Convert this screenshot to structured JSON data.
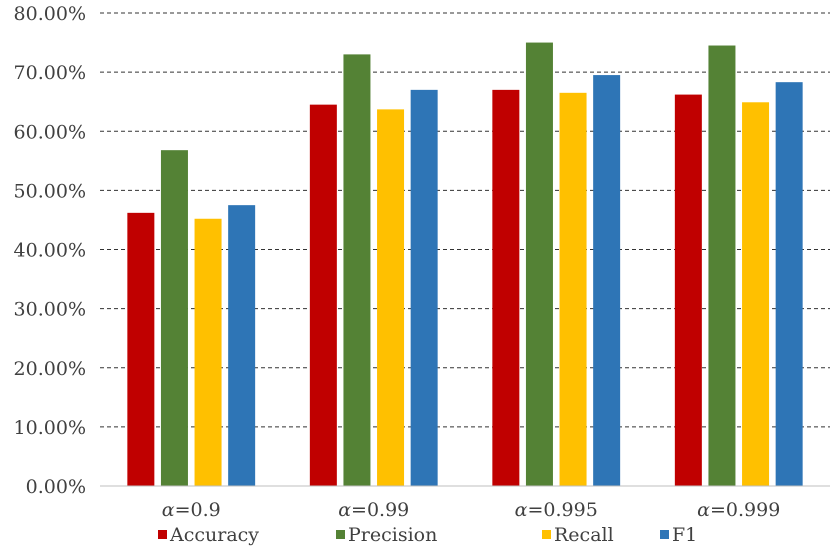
{
  "chart_data": {
    "type": "bar",
    "categories": [
      {
        "symbol": "α",
        "rest": "=0.9"
      },
      {
        "symbol": "α",
        "rest": "=0.99"
      },
      {
        "symbol": "α",
        "rest": "=0.995"
      },
      {
        "symbol": "α",
        "rest": "=0.999"
      }
    ],
    "series": [
      {
        "name": "Accuracy",
        "color": "#c00000",
        "values": [
          46.2,
          64.5,
          67.0,
          66.2
        ]
      },
      {
        "name": "Precision",
        "color": "#548235",
        "values": [
          56.8,
          73.0,
          75.0,
          74.5
        ]
      },
      {
        "name": "Recall",
        "color": "#ffc000",
        "values": [
          45.2,
          63.7,
          66.5,
          64.9
        ]
      },
      {
        "name": "F1",
        "color": "#2e75b6",
        "values": [
          47.5,
          67.0,
          69.5,
          68.3
        ]
      }
    ],
    "ylim": [
      0,
      80
    ],
    "yticks": [
      "0.00%",
      "10.00%",
      "20.00%",
      "30.00%",
      "40.00%",
      "50.00%",
      "60.00%",
      "70.00%",
      "80.00%"
    ],
    "grid": true,
    "legend_position": "bottom",
    "title": "",
    "xlabel": "",
    "ylabel": ""
  }
}
